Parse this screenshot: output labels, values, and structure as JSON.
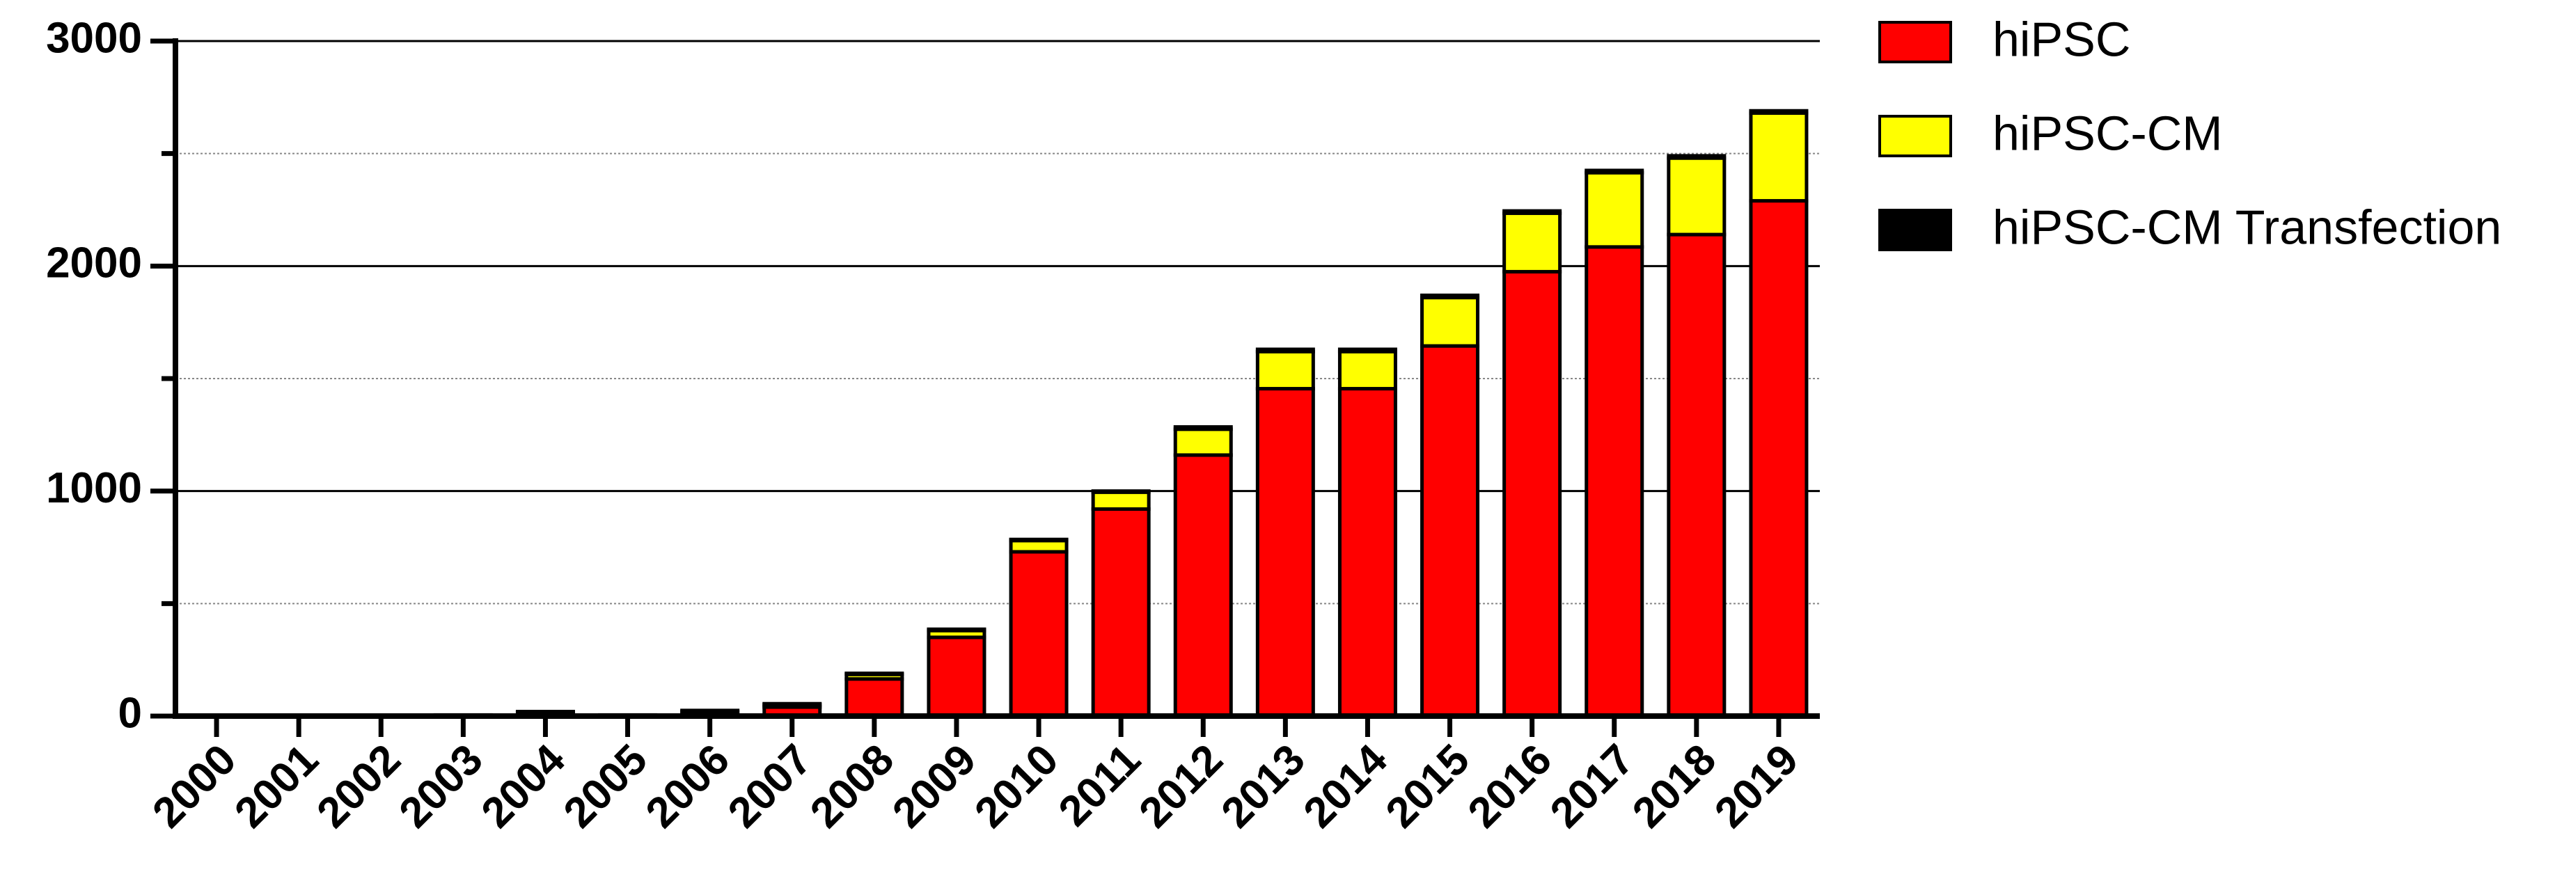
{
  "chart_data": {
    "type": "stacked_bar",
    "categories": [
      "2000",
      "2001",
      "2002",
      "2003",
      "2004",
      "2005",
      "2006",
      "2007",
      "2008",
      "2009",
      "2010",
      "2011",
      "2012",
      "2013",
      "2014",
      "2015",
      "2016",
      "2017",
      "2018",
      "2019"
    ],
    "series": [
      {
        "name": "hiPSC",
        "color": "#ff0000",
        "values": [
          0,
          0,
          0,
          5,
          15,
          5,
          20,
          40,
          165,
          350,
          730,
          920,
          1160,
          1455,
          1455,
          1645,
          1975,
          2085,
          2140,
          2290
        ]
      },
      {
        "name": "hiPSC-CM",
        "color": "#ffff00",
        "values": [
          0,
          0,
          0,
          0,
          0,
          0,
          0,
          10,
          20,
          30,
          50,
          75,
          115,
          165,
          165,
          215,
          260,
          330,
          340,
          390
        ]
      },
      {
        "name": "hiPSC-CM Transfection",
        "color": "#000000",
        "values": [
          0,
          0,
          0,
          0,
          5,
          0,
          5,
          5,
          5,
          6,
          5,
          5,
          10,
          10,
          10,
          10,
          10,
          10,
          10,
          10
        ]
      }
    ],
    "ylim": [
      0,
      3000
    ],
    "yticks": [
      0,
      1000,
      2000,
      3000
    ],
    "minor_yticks": [
      500,
      1500,
      2500
    ],
    "grid": true,
    "legend": "right"
  }
}
